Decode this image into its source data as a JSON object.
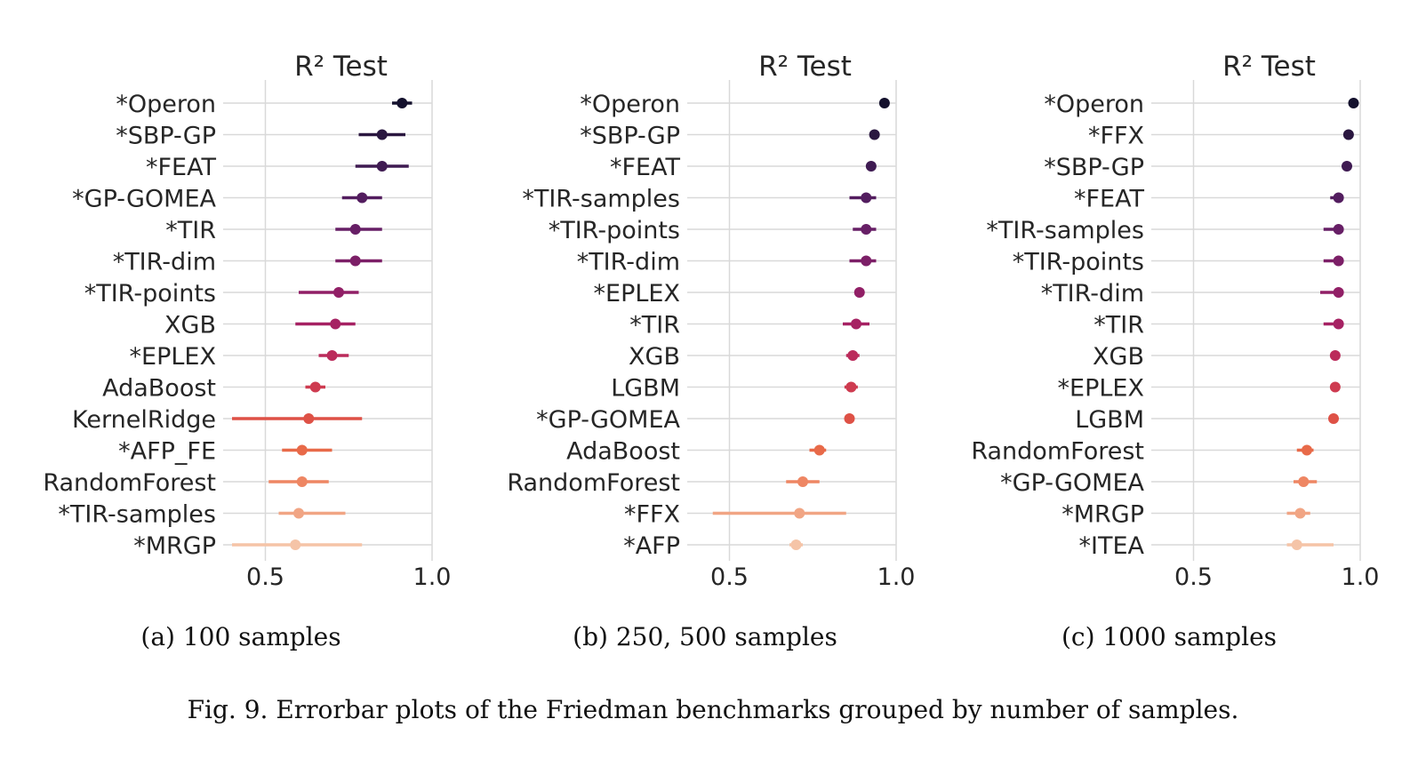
{
  "chart_data": [
    {
      "type": "errorbar",
      "title": "R² Test",
      "caption": "(a) 100 samples",
      "xticks": [
        "0.5",
        "1.0"
      ],
      "xlim": [
        0.4,
        1.0
      ],
      "grid": true,
      "series": [
        {
          "name": "*Operon",
          "mean": 0.91,
          "low": 0.88,
          "high": 0.94
        },
        {
          "name": "*SBP-GP",
          "mean": 0.85,
          "low": 0.78,
          "high": 0.92
        },
        {
          "name": "*FEAT",
          "mean": 0.85,
          "low": 0.77,
          "high": 0.93
        },
        {
          "name": "*GP-GOMEA",
          "mean": 0.79,
          "low": 0.73,
          "high": 0.85
        },
        {
          "name": "*TIR",
          "mean": 0.77,
          "low": 0.71,
          "high": 0.85
        },
        {
          "name": "*TIR-dim",
          "mean": 0.77,
          "low": 0.71,
          "high": 0.85
        },
        {
          "name": "*TIR-points",
          "mean": 0.72,
          "low": 0.6,
          "high": 0.78
        },
        {
          "name": "XGB",
          "mean": 0.71,
          "low": 0.59,
          "high": 0.77
        },
        {
          "name": "*EPLEX",
          "mean": 0.7,
          "low": 0.66,
          "high": 0.75
        },
        {
          "name": "AdaBoost",
          "mean": 0.65,
          "low": 0.62,
          "high": 0.68
        },
        {
          "name": "KernelRidge",
          "mean": 0.63,
          "low": 0.4,
          "high": 0.79
        },
        {
          "name": "*AFP_FE",
          "mean": 0.61,
          "low": 0.55,
          "high": 0.7
        },
        {
          "name": "RandomForest",
          "mean": 0.61,
          "low": 0.51,
          "high": 0.69
        },
        {
          "name": "*TIR-samples",
          "mean": 0.6,
          "low": 0.54,
          "high": 0.74
        },
        {
          "name": "*MRGP",
          "mean": 0.59,
          "low": 0.4,
          "high": 0.79
        }
      ]
    },
    {
      "type": "errorbar",
      "title": "R² Test",
      "caption": "(b) 250, 500 samples",
      "xticks": [
        "0.5",
        "1.0"
      ],
      "xlim": [
        0.4,
        1.0
      ],
      "grid": true,
      "series": [
        {
          "name": "*Operon",
          "mean": 0.965,
          "low": 0.96,
          "high": 0.97
        },
        {
          "name": "*SBP-GP",
          "mean": 0.935,
          "low": 0.92,
          "high": 0.95
        },
        {
          "name": "*FEAT",
          "mean": 0.925,
          "low": 0.91,
          "high": 0.94
        },
        {
          "name": "*TIR-samples",
          "mean": 0.91,
          "low": 0.86,
          "high": 0.94
        },
        {
          "name": "*TIR-points",
          "mean": 0.91,
          "low": 0.87,
          "high": 0.94
        },
        {
          "name": "*TIR-dim",
          "mean": 0.91,
          "low": 0.86,
          "high": 0.94
        },
        {
          "name": "*EPLEX",
          "mean": 0.89,
          "low": 0.88,
          "high": 0.9
        },
        {
          "name": "*TIR",
          "mean": 0.88,
          "low": 0.84,
          "high": 0.92
        },
        {
          "name": "XGB",
          "mean": 0.87,
          "low": 0.85,
          "high": 0.89
        },
        {
          "name": "LGBM",
          "mean": 0.865,
          "low": 0.845,
          "high": 0.885
        },
        {
          "name": "*GP-GOMEA",
          "mean": 0.86,
          "low": 0.85,
          "high": 0.87
        },
        {
          "name": "AdaBoost",
          "mean": 0.77,
          "low": 0.74,
          "high": 0.79
        },
        {
          "name": "RandomForest",
          "mean": 0.72,
          "low": 0.67,
          "high": 0.77
        },
        {
          "name": "*FFX",
          "mean": 0.71,
          "low": 0.45,
          "high": 0.85
        },
        {
          "name": "*AFP",
          "mean": 0.7,
          "low": 0.68,
          "high": 0.72
        }
      ]
    },
    {
      "type": "errorbar",
      "title": "R² Test",
      "caption": "(c) 1000 samples",
      "xticks": [
        "0.5",
        "1.0"
      ],
      "xlim": [
        0.4,
        1.0
      ],
      "grid": true,
      "series": [
        {
          "name": "*Operon",
          "mean": 0.98,
          "low": 0.975,
          "high": 0.985
        },
        {
          "name": "*FFX",
          "mean": 0.965,
          "low": 0.96,
          "high": 0.97
        },
        {
          "name": "*SBP-GP",
          "mean": 0.96,
          "low": 0.955,
          "high": 0.965
        },
        {
          "name": "*FEAT",
          "mean": 0.935,
          "low": 0.91,
          "high": 0.95
        },
        {
          "name": "*TIR-samples",
          "mean": 0.935,
          "low": 0.89,
          "high": 0.95
        },
        {
          "name": "*TIR-points",
          "mean": 0.935,
          "low": 0.89,
          "high": 0.95
        },
        {
          "name": "*TIR-dim",
          "mean": 0.935,
          "low": 0.88,
          "high": 0.95
        },
        {
          "name": "*TIR",
          "mean": 0.935,
          "low": 0.89,
          "high": 0.95
        },
        {
          "name": "XGB",
          "mean": 0.925,
          "low": 0.91,
          "high": 0.94
        },
        {
          "name": "*EPLEX",
          "mean": 0.925,
          "low": 0.91,
          "high": 0.94
        },
        {
          "name": "LGBM",
          "mean": 0.92,
          "low": 0.915,
          "high": 0.93
        },
        {
          "name": "RandomForest",
          "mean": 0.84,
          "low": 0.81,
          "high": 0.86
        },
        {
          "name": "*GP-GOMEA",
          "mean": 0.83,
          "low": 0.8,
          "high": 0.87
        },
        {
          "name": "*MRGP",
          "mean": 0.82,
          "low": 0.78,
          "high": 0.85
        },
        {
          "name": "*ITEA",
          "mean": 0.81,
          "low": 0.78,
          "high": 0.92
        }
      ]
    }
  ],
  "colors": {
    "palette": [
      "#14112d",
      "#2a1740",
      "#3f1b52",
      "#531d5f",
      "#671f66",
      "#7c1f67",
      "#911f66",
      "#a62263",
      "#bb2b5b",
      "#ce3b50",
      "#de5146",
      "#e86a49",
      "#ee8663",
      "#f1a584",
      "#f5c4a7"
    ],
    "grid": "#d9d9d9",
    "text": "#262626"
  },
  "figure": {
    "caption": "Fig. 9.  Errorbar plots of the Friedman benchmarks grouped by number of samples."
  }
}
